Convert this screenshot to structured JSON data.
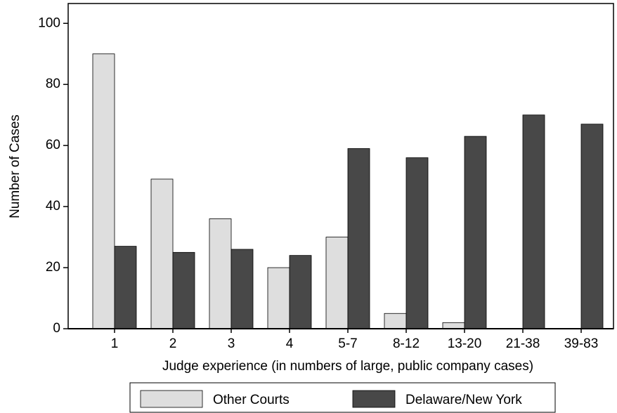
{
  "chart_data": {
    "type": "bar",
    "categories": [
      "1",
      "2",
      "3",
      "4",
      "5-7",
      "8-12",
      "13-20",
      "21-38",
      "39-83"
    ],
    "series": [
      {
        "name": "Other Courts",
        "color": "#dedede",
        "values": [
          90,
          49,
          36,
          20,
          30,
          5,
          2,
          0,
          0
        ]
      },
      {
        "name": "Delaware/New York",
        "color": "#484848",
        "values": [
          27,
          25,
          26,
          24,
          59,
          56,
          63,
          70,
          67
        ]
      }
    ],
    "x_label": "Judge experience (in numbers of large, public company cases)",
    "y_label": "Number of Cases",
    "ylim": [
      0,
      106.5
    ],
    "yticks": [
      0,
      20,
      40,
      60,
      80,
      100
    ],
    "grid": false,
    "legend": "bottom"
  }
}
